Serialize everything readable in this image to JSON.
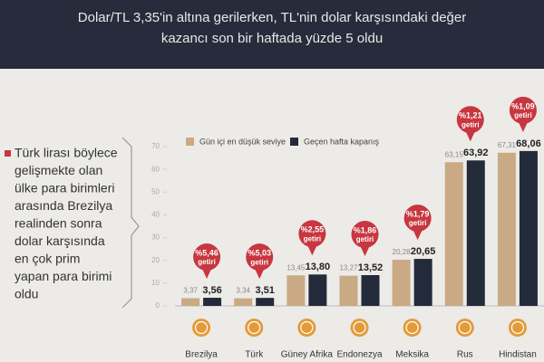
{
  "chart_data": {
    "type": "bar",
    "title_lines": [
      "Dolar/TL 3,35'in altına gerilerken, TL'nin dolar karşısındaki değer",
      "kazancı son bir haftada yüzde 5 oldu"
    ],
    "side_note_lines": [
      "Türk lirası böylece",
      "gelişmekte olan",
      "ülke para birimleri",
      "arasında Brezilya",
      "realinden sonra",
      "dolar karşısında",
      "en çok prim",
      "yapan para birimi",
      "oldu"
    ],
    "categories": [
      "Brezilya",
      "Türk",
      "Güney Afrika",
      "Endonezya",
      "Meksika",
      "Rus",
      "Hindistan"
    ],
    "series": [
      {
        "name": "Gün içi en düşük seviye",
        "color": "#c9aa84",
        "values": [
          3.37,
          3.34,
          13.45,
          13.27,
          20.28,
          63.15,
          67.31
        ],
        "value_labels": [
          "3,37",
          "3,34",
          "13,45",
          "13,27",
          "20,28",
          "63,15",
          "67,31"
        ]
      },
      {
        "name": "Geçen hafta kapanış",
        "color": "#232a3a",
        "values": [
          3.56,
          3.51,
          13.8,
          13.52,
          20.65,
          63.92,
          68.06
        ],
        "value_labels": [
          "3,56",
          "3,51",
          "13,80",
          "13,52",
          "20,65",
          "63,92",
          "68,06"
        ]
      }
    ],
    "annotations": [
      {
        "pct": "%5,46",
        "word": "getiri"
      },
      {
        "pct": "%5,03",
        "word": "getiri"
      },
      {
        "pct": "%2,55",
        "word": "getiri"
      },
      {
        "pct": "%1,86",
        "word": "getiri"
      },
      {
        "pct": "%1,79",
        "word": "getiri"
      },
      {
        "pct": "%1,21",
        "word": "getiri"
      },
      {
        "pct": "%1,09",
        "word": "getiri"
      }
    ],
    "ylim": [
      0,
      70
    ],
    "yticks": [
      0,
      10,
      20,
      30,
      40,
      50,
      60,
      70
    ],
    "legend": "top",
    "annotation_color": "#c8363f"
  }
}
